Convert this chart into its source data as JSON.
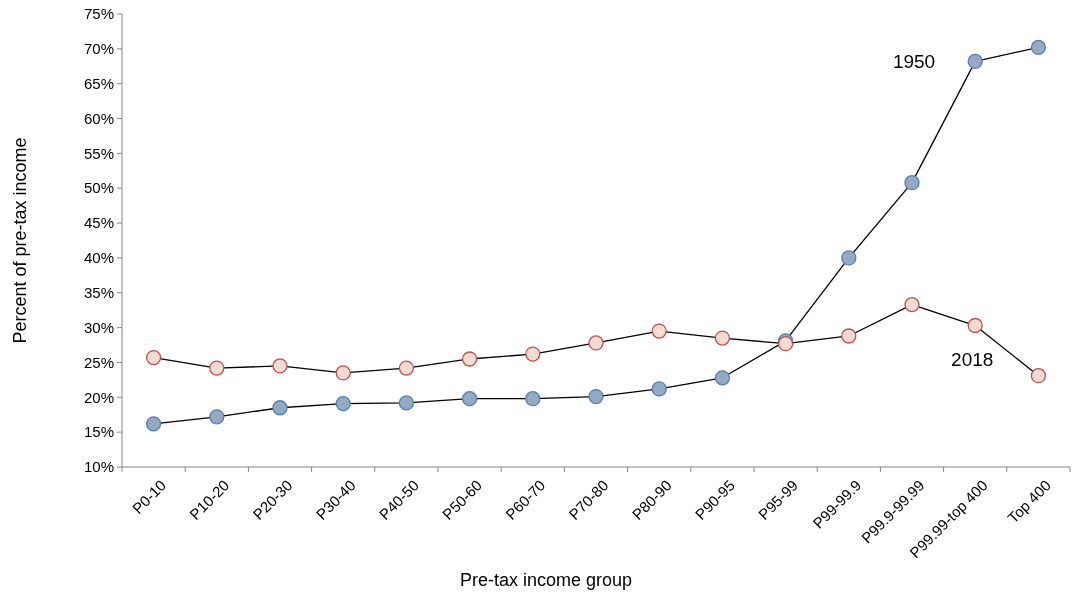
{
  "chart_data": {
    "type": "line",
    "xlabel": "Pre-tax income group",
    "ylabel": "Percent of pre-tax income",
    "categories": [
      "P0-10",
      "P10-20",
      "P20-30",
      "P30-40",
      "P40-50",
      "P50-60",
      "P60-70",
      "P70-80",
      "P80-90",
      "P90-95",
      "P95-99",
      "P99-99.9",
      "P99.9-99.99",
      "P99.99-top 400",
      "Top 400"
    ],
    "series": [
      {
        "name": "1950",
        "color": "#4f81bd",
        "values": [
          16.2,
          17.2,
          18.5,
          19.1,
          19.2,
          19.8,
          19.8,
          20.1,
          21.2,
          22.8,
          28.1,
          40.0,
          50.8,
          68.2,
          70.2
        ]
      },
      {
        "name": "2018",
        "color": "#c0504d",
        "values": [
          25.7,
          24.2,
          24.5,
          23.5,
          24.2,
          25.5,
          26.2,
          27.8,
          29.5,
          28.5,
          27.7,
          28.8,
          33.3,
          30.3,
          23.1
        ]
      }
    ],
    "ylim": [
      10,
      75
    ],
    "yticks": [
      {
        "value": 10,
        "label": "10%"
      },
      {
        "value": 15,
        "label": "15%"
      },
      {
        "value": 20,
        "label": "20%"
      },
      {
        "value": 25,
        "label": "25%"
      },
      {
        "value": 30,
        "label": "30%"
      },
      {
        "value": 35,
        "label": "35%"
      },
      {
        "value": 40,
        "label": "40%"
      },
      {
        "value": 45,
        "label": "45%"
      },
      {
        "value": 50,
        "label": "50%"
      },
      {
        "value": 55,
        "label": "55%"
      },
      {
        "value": 60,
        "label": "60%"
      },
      {
        "value": 65,
        "label": "65%"
      },
      {
        "value": 70,
        "label": "70%"
      },
      {
        "value": 75,
        "label": "75%"
      }
    ],
    "grid": false,
    "marker": "circle",
    "line_style": "solid"
  }
}
